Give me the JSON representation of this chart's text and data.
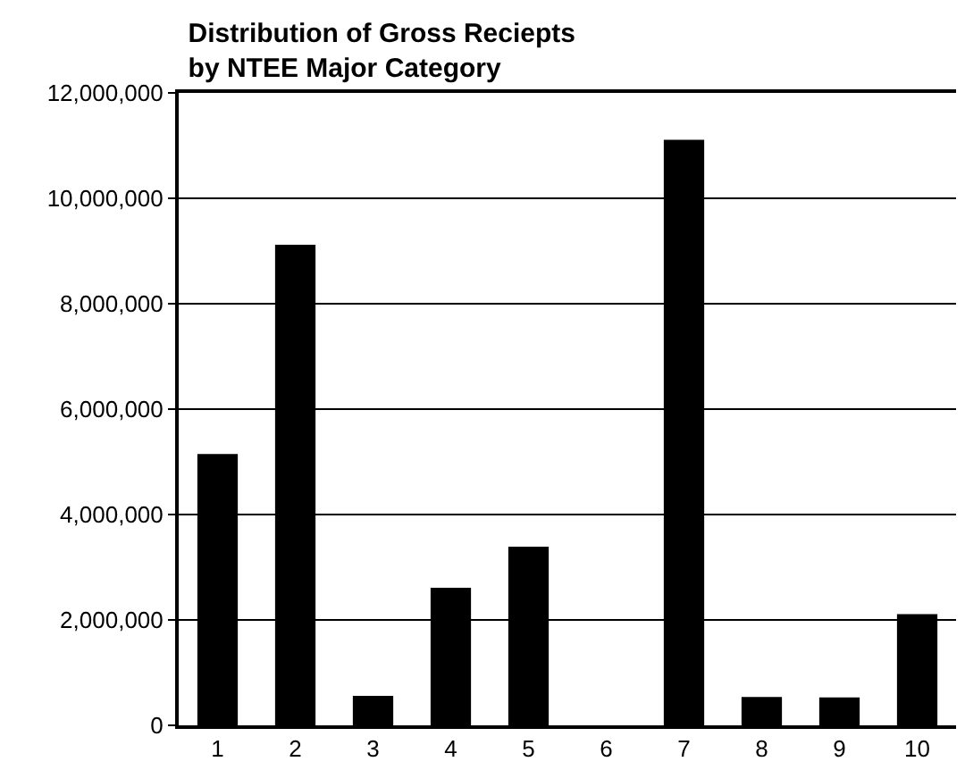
{
  "chart_data": {
    "type": "bar",
    "title": "Distribution of Gross Reciepts\nby NTEE Major Category",
    "categories": [
      "1",
      "2",
      "3",
      "4",
      "5",
      "6",
      "7",
      "8",
      "9",
      "10"
    ],
    "values": [
      5150000,
      9120000,
      560000,
      2610000,
      3390000,
      0,
      11110000,
      540000,
      530000,
      2110000
    ],
    "color": "#000000",
    "ylim": [
      0,
      12000000
    ],
    "yticks": [
      {
        "value": 0,
        "label": "0"
      },
      {
        "value": 2000000,
        "label": "2,000,000"
      },
      {
        "value": 4000000,
        "label": "4,000,000"
      },
      {
        "value": 6000000,
        "label": "6,000,000"
      },
      {
        "value": 8000000,
        "label": "8,000,000"
      },
      {
        "value": 10000000,
        "label": "10,000,000"
      },
      {
        "value": 12000000,
        "label": "12,000,000"
      }
    ],
    "grid": "y"
  }
}
